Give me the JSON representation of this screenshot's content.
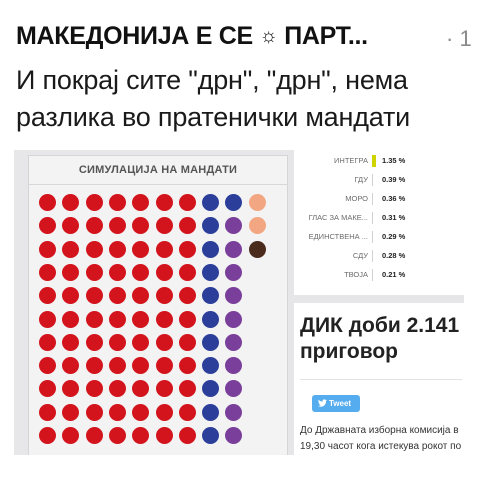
{
  "post": {
    "source": "МАКЕДОНИЈА Е СЕ",
    "source_icon": "☼",
    "source_tail": "ПАРТ...",
    "meta": "· 1",
    "headline_line1": "И покрај сите \"дрн\", \"дрн\", нема",
    "headline_line2": "разлика во пратенички мандати"
  },
  "simulation": {
    "title": "СИМУЛАЦИЈА НА МАНДАТИ",
    "colors": {
      "red": "#d3141c",
      "blue": "#2b3f9a",
      "purple": "#7a3f9a",
      "peach": "#f3a682",
      "brown": "#4a2b1c"
    },
    "rows": [
      [
        "red",
        "red",
        "red",
        "red",
        "red",
        "red",
        "red",
        "blue",
        "blue",
        "peach"
      ],
      [
        "red",
        "red",
        "red",
        "red",
        "red",
        "red",
        "red",
        "blue",
        "purple",
        "peach"
      ],
      [
        "red",
        "red",
        "red",
        "red",
        "red",
        "red",
        "red",
        "blue",
        "purple",
        "brown"
      ],
      [
        "red",
        "red",
        "red",
        "red",
        "red",
        "red",
        "red",
        "blue",
        "purple"
      ],
      [
        "red",
        "red",
        "red",
        "red",
        "red",
        "red",
        "red",
        "blue",
        "purple"
      ],
      [
        "red",
        "red",
        "red",
        "red",
        "red",
        "red",
        "red",
        "blue",
        "purple"
      ],
      [
        "red",
        "red",
        "red",
        "red",
        "red",
        "red",
        "red",
        "blue",
        "purple"
      ],
      [
        "red",
        "red",
        "red",
        "red",
        "red",
        "red",
        "red",
        "blue",
        "purple"
      ],
      [
        "red",
        "red",
        "red",
        "red",
        "red",
        "red",
        "red",
        "blue",
        "purple"
      ],
      [
        "red",
        "red",
        "red",
        "red",
        "red",
        "red",
        "red",
        "blue",
        "purple"
      ],
      [
        "red",
        "red",
        "red",
        "red",
        "red",
        "red",
        "red",
        "blue",
        "purple"
      ]
    ]
  },
  "results": [
    {
      "label": "ИНТЕГРА",
      "pct": "1.35 %",
      "highlight": true
    },
    {
      "label": "ГДУ",
      "pct": "0.39 %",
      "highlight": false
    },
    {
      "label": "МОРО",
      "pct": "0.36 %",
      "highlight": false
    },
    {
      "label": "ГЛАС ЗА МАКЕ...",
      "pct": "0.31 %",
      "highlight": false
    },
    {
      "label": "ЕДИНСТВЕНА ...",
      "pct": "0.29 %",
      "highlight": false
    },
    {
      "label": "СДУ",
      "pct": "0.28 %",
      "highlight": false
    },
    {
      "label": "ТВОЈА",
      "pct": "0.21 %",
      "highlight": false
    }
  ],
  "article": {
    "title_line1": "ДИК доби 2.141",
    "title_line2": "приговор",
    "tweet_label": "Tweet",
    "tweet_icon": "twitter-bird-icon",
    "body_line1": "До Државната изборна комисија в",
    "body_line2": "19,30 часот кога истекува рокот по"
  }
}
